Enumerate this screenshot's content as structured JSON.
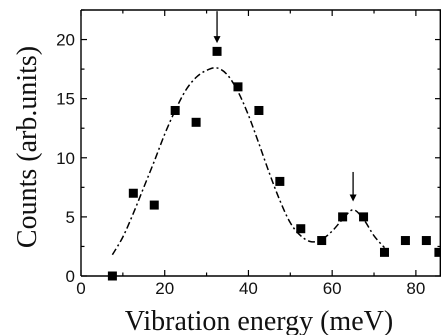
{
  "chart_data": {
    "type": "scatter",
    "xlabel": "Vibration energy  (meV)",
    "ylabel": "Counts (arb.units)",
    "xlim": [
      0,
      86
    ],
    "ylim": [
      0,
      22.5
    ],
    "x_ticks": [
      0,
      20,
      40,
      60,
      80
    ],
    "y_ticks": [
      0,
      5,
      10,
      15,
      20
    ],
    "x_tick_labels": [
      "0",
      "20",
      "40",
      "60",
      "80"
    ],
    "y_tick_labels": [
      "0",
      "5",
      "10",
      "15",
      "20"
    ],
    "grid": false,
    "series": [
      {
        "type": "scatter",
        "marker": "filled-square",
        "color": "#000000",
        "points": [
          [
            7.5,
            0
          ],
          [
            12.5,
            7
          ],
          [
            17.5,
            6
          ],
          [
            22.5,
            14
          ],
          [
            27.5,
            13
          ],
          [
            32.5,
            19
          ],
          [
            37.5,
            16
          ],
          [
            42.5,
            14
          ],
          [
            47.5,
            8
          ],
          [
            52.5,
            4
          ],
          [
            57.5,
            3
          ],
          [
            62.5,
            5
          ],
          [
            67.5,
            5
          ],
          [
            72.5,
            2
          ],
          [
            77.5,
            3
          ],
          [
            82.5,
            3
          ],
          [
            85.5,
            2
          ]
        ]
      },
      {
        "type": "line",
        "style": "dash-dot",
        "color": "#000000",
        "points": [
          [
            7.5,
            1.8
          ],
          [
            10,
            3.3
          ],
          [
            12.5,
            5.3
          ],
          [
            15,
            7.5
          ],
          [
            17.5,
            9.7
          ],
          [
            20,
            12
          ],
          [
            22.5,
            14
          ],
          [
            25,
            15.7
          ],
          [
            27.5,
            16.8
          ],
          [
            30,
            17.4
          ],
          [
            32.5,
            17.6
          ],
          [
            35,
            17
          ],
          [
            37.5,
            15.6
          ],
          [
            40,
            13.6
          ],
          [
            42.5,
            11.2
          ],
          [
            45,
            8.7
          ],
          [
            47.5,
            6.4
          ],
          [
            50,
            4.5
          ],
          [
            52.5,
            3.4
          ],
          [
            55,
            2.9
          ],
          [
            57.5,
            3.1
          ],
          [
            60,
            3.8
          ],
          [
            62.5,
            4.8
          ],
          [
            65,
            5.6
          ],
          [
            67.5,
            4.8
          ],
          [
            70,
            3.4
          ],
          [
            72.5,
            2.4
          ]
        ]
      }
    ],
    "annotations": [
      {
        "type": "down-arrow",
        "x": 32.5,
        "y_from": 22.4,
        "y_to": 19.7
      },
      {
        "type": "down-arrow",
        "x": 65,
        "y_from": 8.8,
        "y_to": 6.3
      }
    ]
  }
}
